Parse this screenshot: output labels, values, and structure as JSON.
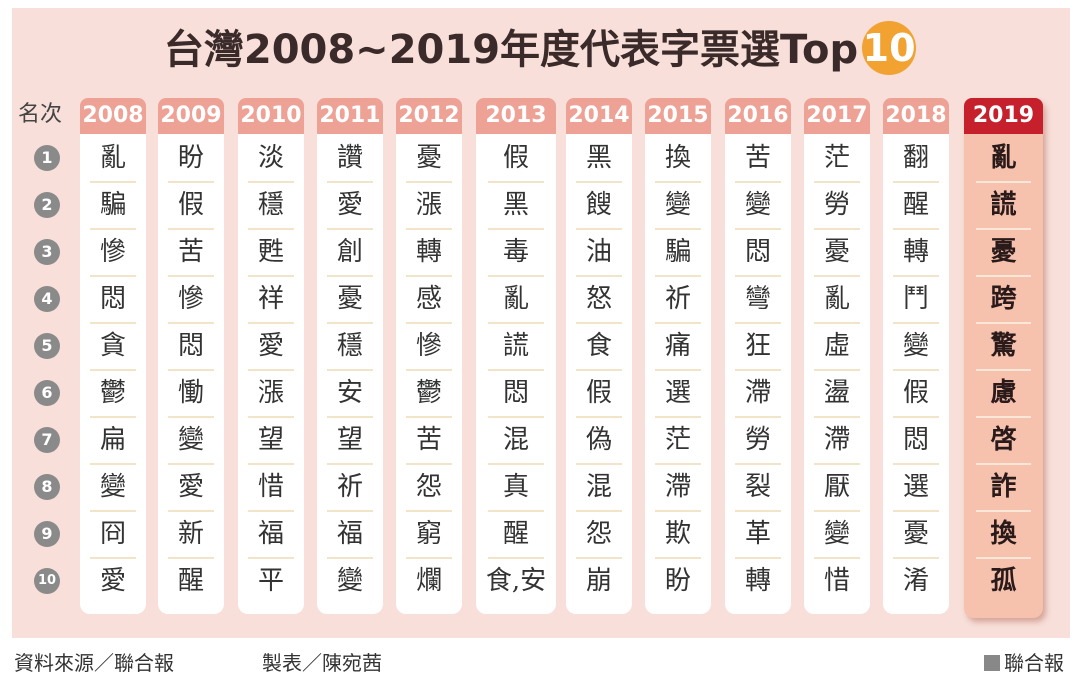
{
  "title_text": "台灣2008~2019年度代表字票選Top",
  "title_badge": "10",
  "rank_header": "名次",
  "ranks": [
    "1",
    "2",
    "3",
    "4",
    "5",
    "6",
    "7",
    "8",
    "9",
    "10"
  ],
  "columns": [
    {
      "year": "2008",
      "chars": [
        "亂",
        "騙",
        "慘",
        "悶",
        "貪",
        "鬱",
        "扁",
        "變",
        "冏",
        "愛"
      ]
    },
    {
      "year": "2009",
      "chars": [
        "盼",
        "假",
        "苦",
        "慘",
        "悶",
        "慟",
        "變",
        "愛",
        "新",
        "醒"
      ]
    },
    {
      "year": "2010",
      "chars": [
        "淡",
        "穩",
        "甦",
        "祥",
        "愛",
        "漲",
        "望",
        "惜",
        "福",
        "平"
      ]
    },
    {
      "year": "2011",
      "chars": [
        "讚",
        "愛",
        "創",
        "憂",
        "穩",
        "安",
        "望",
        "祈",
        "福",
        "變"
      ]
    },
    {
      "year": "2012",
      "chars": [
        "憂",
        "漲",
        "轉",
        "感",
        "慘",
        "鬱",
        "苦",
        "怨",
        "窮",
        "爛"
      ]
    },
    {
      "year": "2013",
      "chars": [
        "假",
        "黑",
        "毒",
        "亂",
        "謊",
        "悶",
        "混",
        "真",
        "醒",
        "食,安"
      ]
    },
    {
      "year": "2014",
      "chars": [
        "黑",
        "餿",
        "油",
        "怒",
        "食",
        "假",
        "偽",
        "混",
        "怨",
        "崩"
      ]
    },
    {
      "year": "2015",
      "chars": [
        "換",
        "變",
        "騙",
        "祈",
        "痛",
        "選",
        "茫",
        "滯",
        "欺",
        "盼"
      ]
    },
    {
      "year": "2016",
      "chars": [
        "苦",
        "變",
        "悶",
        "彎",
        "狂",
        "滯",
        "勞",
        "裂",
        "革",
        "轉"
      ]
    },
    {
      "year": "2017",
      "chars": [
        "茫",
        "勞",
        "憂",
        "亂",
        "虛",
        "盪",
        "滯",
        "厭",
        "變",
        "惜"
      ]
    },
    {
      "year": "2018",
      "chars": [
        "翻",
        "醒",
        "轉",
        "鬥",
        "變",
        "假",
        "悶",
        "選",
        "憂",
        "淆"
      ]
    },
    {
      "year": "2019",
      "chars": [
        "亂",
        "謊",
        "憂",
        "跨",
        "驚",
        "慮",
        "啓",
        "詐",
        "換",
        "孤"
      ]
    }
  ],
  "footer": {
    "source": "資料來源／聯合報",
    "maker": "製表／陳宛茜",
    "brand": "聯合報"
  },
  "colors": {
    "background": "#f8dfd9",
    "year_header": "#eea195",
    "highlight_header": "#c5202c",
    "highlight_column": "#f6c1ad",
    "rank_circle": "#8a8a8a",
    "badge": "#f2a230"
  }
}
